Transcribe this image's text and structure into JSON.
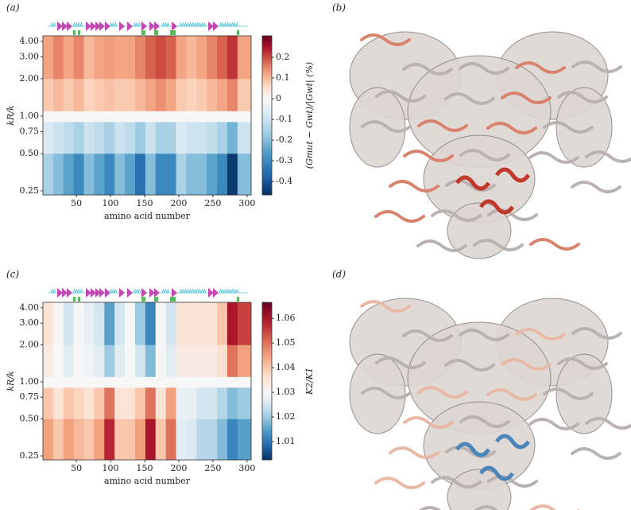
{
  "chart_data": [
    {
      "type": "heatmap",
      "panel_label": "(a)",
      "xlabel": "amino acid number",
      "ylabel": "kR/k",
      "colorbar_label": "(Gmut − Gwt)/|Gwt| (%)",
      "colormap": "RdBu_r",
      "yscale": "log",
      "xlim": [
        1,
        306
      ],
      "xticks": [
        50,
        100,
        150,
        200,
        250,
        300
      ],
      "ylim": [
        0.232,
        4.43
      ],
      "yticks": [
        {
          "value": 0.25,
          "label": "0.25"
        },
        {
          "value": 0.5,
          "label": "0.50"
        },
        {
          "value": 0.75,
          "label": "0.75"
        },
        {
          "value": 1,
          "label": "1.00"
        },
        {
          "value": 2,
          "label": "2.00"
        },
        {
          "value": 3,
          "label": "3.00"
        },
        {
          "value": 4,
          "label": "4.00"
        }
      ],
      "clim": [
        -0.465,
        0.304
      ],
      "center": 0,
      "cticks": [
        -0.4,
        -0.3,
        -0.2,
        -0.1,
        0,
        0.1,
        0.2
      ],
      "xbins": [
        1,
        16,
        31,
        46,
        61,
        76,
        91,
        106,
        121,
        136,
        151,
        166,
        181,
        196,
        211,
        226,
        241,
        256,
        271,
        286,
        306
      ],
      "ybins": [
        0.232,
        0.5,
        0.9,
        1.1,
        2,
        4.43
      ],
      "z": [
        [
          -0.15,
          -0.2,
          -0.25,
          -0.3,
          -0.2,
          -0.25,
          -0.3,
          -0.2,
          -0.25,
          -0.35,
          -0.2,
          -0.3,
          -0.3,
          -0.15,
          -0.2,
          -0.2,
          -0.25,
          -0.3,
          -0.45,
          -0.2
        ],
        [
          -0.07,
          -0.1,
          -0.12,
          -0.15,
          -0.1,
          -0.12,
          -0.15,
          -0.1,
          -0.12,
          -0.17,
          -0.1,
          -0.15,
          -0.15,
          -0.07,
          -0.1,
          -0.1,
          -0.12,
          -0.15,
          -0.22,
          -0.1
        ],
        [
          0,
          0,
          0,
          0,
          0,
          0,
          0,
          0,
          0,
          0,
          0,
          0,
          0,
          0,
          0,
          0,
          0,
          0,
          0,
          0
        ],
        [
          0.08,
          0.1,
          0.08,
          0.1,
          0.07,
          0.08,
          0.09,
          0.08,
          0.08,
          0.1,
          0.12,
          0.14,
          0.12,
          0.08,
          0.07,
          0.08,
          0.1,
          0.12,
          0.15,
          0.08
        ],
        [
          0.12,
          0.15,
          0.12,
          0.15,
          0.1,
          0.12,
          0.13,
          0.12,
          0.12,
          0.15,
          0.18,
          0.2,
          0.18,
          0.12,
          0.1,
          0.12,
          0.15,
          0.18,
          0.22,
          0.12
        ]
      ]
    },
    {
      "type": "heatmap",
      "panel_label": "(c)",
      "xlabel": "amino acid number",
      "ylabel": "kR/k",
      "colorbar_label": "K2/K1",
      "colormap": "RdBu_r",
      "yscale": "log",
      "xlim": [
        1,
        306
      ],
      "xticks": [
        50,
        100,
        150,
        200,
        250,
        300
      ],
      "ylim": [
        0.232,
        4.43
      ],
      "yticks": [
        {
          "value": 0.25,
          "label": "0.25"
        },
        {
          "value": 0.5,
          "label": "0.50"
        },
        {
          "value": 0.75,
          "label": "0.75"
        },
        {
          "value": 1,
          "label": "1.00"
        },
        {
          "value": 2,
          "label": "2.00"
        },
        {
          "value": 3,
          "label": "3.00"
        },
        {
          "value": 4,
          "label": "4.00"
        }
      ],
      "clim": [
        1.0026,
        1.0665
      ],
      "center": 1.03,
      "cticks": [
        1.01,
        1.02,
        1.03,
        1.04,
        1.05,
        1.06
      ],
      "xbins": [
        1,
        16,
        31,
        46,
        61,
        76,
        91,
        106,
        121,
        136,
        151,
        166,
        181,
        196,
        211,
        226,
        241,
        256,
        271,
        286,
        306
      ],
      "ybins": [
        0.232,
        0.5,
        0.9,
        1.1,
        2,
        4.43
      ],
      "z": [
        [
          1.045,
          1.04,
          1.045,
          1.042,
          1.04,
          1.045,
          1.058,
          1.04,
          1.04,
          1.045,
          1.06,
          1.04,
          1.05,
          1.027,
          1.026,
          1.022,
          1.022,
          1.018,
          1.012,
          1.015
        ],
        [
          1.04,
          1.035,
          1.04,
          1.038,
          1.035,
          1.04,
          1.05,
          1.035,
          1.035,
          1.04,
          1.05,
          1.035,
          1.045,
          1.028,
          1.028,
          1.025,
          1.025,
          1.022,
          1.018,
          1.02
        ],
        [
          1.03,
          1.03,
          1.03,
          1.03,
          1.03,
          1.03,
          1.03,
          1.03,
          1.03,
          1.03,
          1.03,
          1.03,
          1.03,
          1.03,
          1.03,
          1.03,
          1.03,
          1.03,
          1.03,
          1.03
        ],
        [
          1.033,
          1.03,
          1.027,
          1.03,
          1.029,
          1.027,
          1.02,
          1.027,
          1.03,
          1.025,
          1.018,
          1.03,
          1.027,
          1.033,
          1.033,
          1.033,
          1.033,
          1.036,
          1.05,
          1.045
        ],
        [
          1.035,
          1.03,
          1.025,
          1.03,
          1.028,
          1.025,
          1.015,
          1.025,
          1.03,
          1.02,
          1.012,
          1.03,
          1.025,
          1.035,
          1.035,
          1.035,
          1.035,
          1.04,
          1.06,
          1.055
        ]
      ]
    }
  ],
  "images": [
    {
      "panel_label": "(b)"
    },
    {
      "panel_label": "(d)"
    }
  ]
}
